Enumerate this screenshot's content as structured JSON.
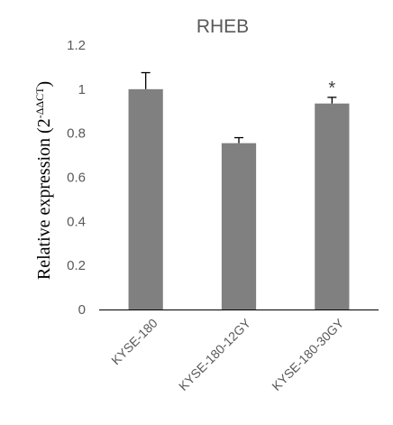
{
  "chart_data": {
    "type": "bar",
    "title": "RHEB",
    "ylabel": {
      "main": "Relative expression (2",
      "superscript": "-ΔΔCT",
      "close": ")"
    },
    "categories": [
      "KYSE-180",
      "KYSE-180-12GY",
      "KYSE-180-30GY"
    ],
    "values": [
      1.0,
      0.755,
      0.935
    ],
    "errors": [
      0.075,
      0.025,
      0.028
    ],
    "annotations": [
      "",
      "",
      "*"
    ],
    "ylim": [
      0,
      1.2
    ],
    "yticks": [
      0,
      0.2,
      0.4,
      0.6,
      0.8,
      1,
      1.2
    ],
    "ytick_labels": [
      "0",
      "0.2",
      "0.4",
      "0.6",
      "0.8",
      "1",
      "1.2"
    ],
    "grid": false,
    "colors": {
      "bar": "#808080",
      "axis": "#000000",
      "tick_text": "#595959",
      "error": "#000000"
    }
  }
}
